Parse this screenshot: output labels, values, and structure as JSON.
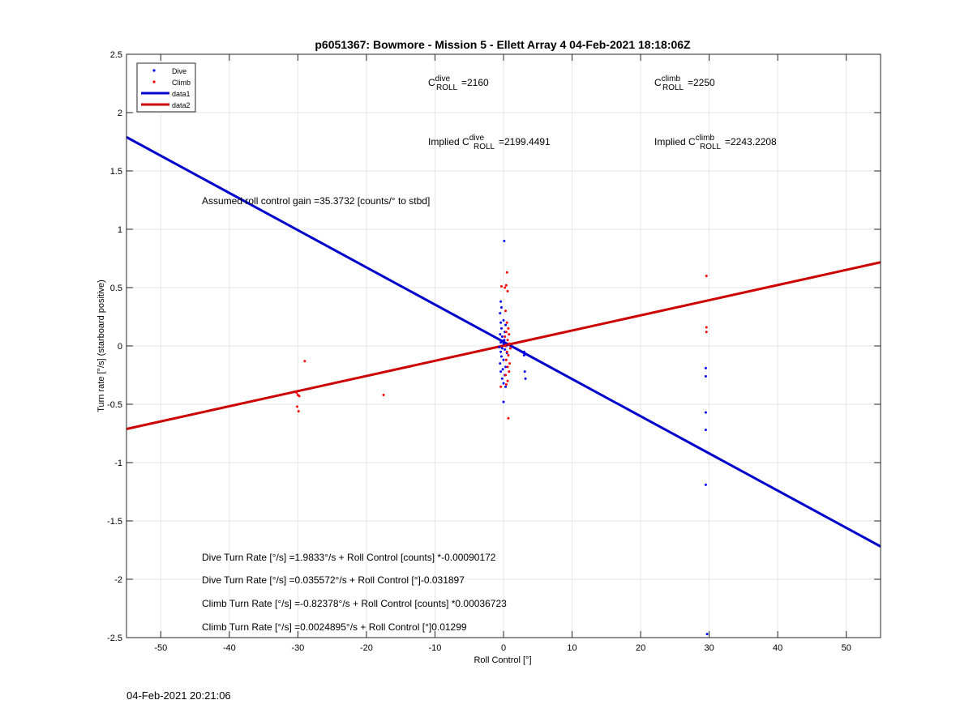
{
  "figure": {
    "timestamp": "04-Feb-2021 20:21:06"
  },
  "chart_data": {
    "type": "scatter",
    "title": "p6051367: Bowmore - Mission 5 - Ellett Array 4 04-Feb-2021 18:18:06Z",
    "xlabel": "Roll Control [°]",
    "ylabel": "Turn rate [°/s] (starboard positive)",
    "xlim": [
      -55,
      55
    ],
    "ylim": [
      -2.5,
      2.5
    ],
    "xticks": [
      -50,
      -40,
      -30,
      -20,
      -10,
      0,
      10,
      20,
      30,
      40,
      50
    ],
    "yticks": [
      -2.5,
      -2,
      -1.5,
      -1,
      -0.5,
      0,
      0.5,
      1,
      1.5,
      2,
      2.5
    ],
    "xtick_labels": [
      "-50",
      "-40",
      "-30",
      "-20",
      "-10",
      "0",
      "10",
      "20",
      "30",
      "40",
      "50"
    ],
    "ytick_labels": [
      "-2.5",
      "-2",
      "-1.5",
      "-1",
      "-0.5",
      "0",
      "0.5",
      "1",
      "1.5",
      "2",
      "2.5"
    ],
    "grid": true,
    "legend_position": "top-left",
    "legend": [
      {
        "label": "Dive",
        "style": "dot",
        "color": "#0000ff"
      },
      {
        "label": "Climb",
        "style": "dot",
        "color": "#ff0000"
      },
      {
        "label": "data1",
        "style": "line",
        "color": "#0000cc"
      },
      {
        "label": "data2",
        "style": "line",
        "color": "#cc0000"
      }
    ],
    "series": [
      {
        "name": "Dive",
        "kind": "points",
        "color": "#0000ff",
        "points": [
          [
            0.1,
            0.9
          ],
          [
            -0.4,
            0.38
          ],
          [
            -0.3,
            0.33
          ],
          [
            -0.5,
            0.28
          ],
          [
            0.0,
            0.22
          ],
          [
            -0.4,
            0.2
          ],
          [
            0.3,
            0.18
          ],
          [
            -0.3,
            0.15
          ],
          [
            0.2,
            0.12
          ],
          [
            -0.5,
            0.1
          ],
          [
            -0.2,
            0.08
          ],
          [
            0.1,
            0.05
          ],
          [
            -0.4,
            0.03
          ],
          [
            0.0,
            0.02
          ],
          [
            0.4,
            0.0
          ],
          [
            -0.6,
            -0.01
          ],
          [
            -0.2,
            -0.02
          ],
          [
            0.2,
            -0.03
          ],
          [
            -0.4,
            -0.05
          ],
          [
            0.5,
            -0.06
          ],
          [
            -0.3,
            -0.09
          ],
          [
            0.0,
            -0.12
          ],
          [
            -0.5,
            -0.15
          ],
          [
            0.3,
            -0.18
          ],
          [
            -0.1,
            -0.2
          ],
          [
            -0.4,
            -0.22
          ],
          [
            0.2,
            -0.25
          ],
          [
            -0.2,
            -0.28
          ],
          [
            0.0,
            -0.32
          ],
          [
            0.3,
            -0.35
          ],
          [
            0.0,
            -0.48
          ],
          [
            3.0,
            -0.05
          ],
          [
            3.1,
            -0.22
          ],
          [
            3.2,
            -0.28
          ],
          [
            3.0,
            -0.08
          ],
          [
            29.5,
            -0.19
          ],
          [
            29.5,
            -0.26
          ],
          [
            29.5,
            -0.57
          ],
          [
            29.5,
            -0.72
          ],
          [
            29.5,
            -1.19
          ],
          [
            29.7,
            -2.47
          ]
        ]
      },
      {
        "name": "Climb",
        "kind": "points",
        "color": "#ff0000",
        "points": [
          [
            -30.2,
            -0.4
          ],
          [
            -30.0,
            -0.42
          ],
          [
            -29.8,
            -0.43
          ],
          [
            -30.1,
            -0.52
          ],
          [
            -29.9,
            -0.56
          ],
          [
            -29.0,
            -0.13
          ],
          [
            -17.5,
            -0.42
          ],
          [
            0.5,
            0.63
          ],
          [
            0.4,
            0.52
          ],
          [
            0.2,
            0.5
          ],
          [
            -0.3,
            0.51
          ],
          [
            0.6,
            0.47
          ],
          [
            0.3,
            0.3
          ],
          [
            0.5,
            0.2
          ],
          [
            0.7,
            0.15
          ],
          [
            0.4,
            0.12
          ],
          [
            0.8,
            0.1
          ],
          [
            0.2,
            0.08
          ],
          [
            0.6,
            0.05
          ],
          [
            0.9,
            0.02
          ],
          [
            0.3,
            0.0
          ],
          [
            1.0,
            -0.02
          ],
          [
            0.5,
            -0.05
          ],
          [
            0.7,
            -0.08
          ],
          [
            0.4,
            -0.12
          ],
          [
            0.9,
            -0.15
          ],
          [
            0.6,
            -0.18
          ],
          [
            0.8,
            -0.22
          ],
          [
            0.3,
            -0.25
          ],
          [
            0.6,
            -0.3
          ],
          [
            0.4,
            -0.33
          ],
          [
            -0.4,
            -0.35
          ],
          [
            0.7,
            -0.62
          ],
          [
            29.6,
            0.6
          ],
          [
            29.6,
            0.16
          ],
          [
            29.6,
            0.12
          ]
        ]
      },
      {
        "name": "data1",
        "kind": "line",
        "color": "#0000cc",
        "slope": -0.031897,
        "intercept": 0.035572
      },
      {
        "name": "data2",
        "kind": "line",
        "color": "#cc0000",
        "slope": 0.01299,
        "intercept": 0.0024895
      }
    ],
    "annotations": {
      "c_dive": {
        "base": "C",
        "sup": "dive",
        "sub": "ROLL",
        "value": "=2160"
      },
      "c_climb": {
        "base": "C",
        "sup": "climb",
        "sub": "ROLL",
        "value": "=2250"
      },
      "implied_dive": {
        "prefix": "Implied C",
        "sup": "dive",
        "sub": "ROLL",
        "value": "=2199.4491"
      },
      "implied_climb": {
        "prefix": "Implied C",
        "sup": "climb",
        "sub": "ROLL",
        "value": "=2243.2208"
      },
      "gain": "Assumed roll control gain =35.3732 [counts/° to stbd]",
      "eq1": "Dive Turn Rate [°/s] =1.9833°/s + Roll Control [counts] *-0.00090172",
      "eq2": "Dive Turn Rate [°/s] =0.035572°/s + Roll Control [°]-0.031897",
      "eq3": "Climb Turn Rate [°/s] =-0.82378°/s + Roll Control [counts] *0.00036723",
      "eq4": "Climb Turn Rate [°/s] =0.0024895°/s + Roll Control [°]0.01299"
    }
  }
}
